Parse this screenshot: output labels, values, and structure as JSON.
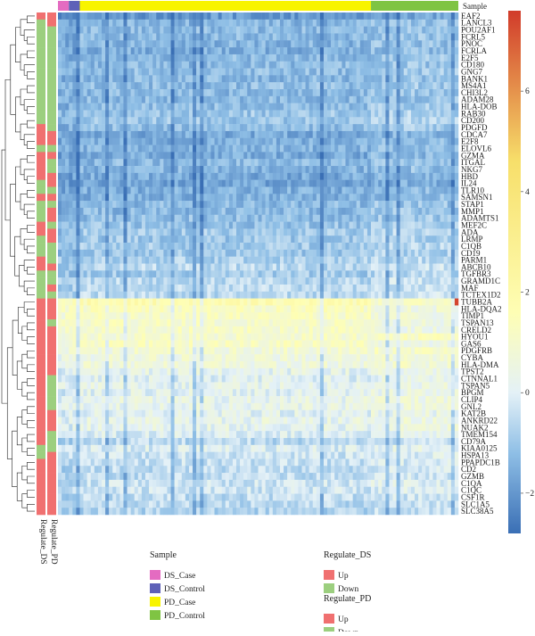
{
  "chart_data": {
    "type": "heatmap",
    "column_annotation": {
      "title": "Sample",
      "groups": [
        {
          "name": "DS_Case",
          "color": "#e46bc1",
          "count": 3
        },
        {
          "name": "DS_Control",
          "color": "#5e61b8",
          "count": 3
        },
        {
          "name": "PD_Case",
          "color": "#f8f400",
          "count": 80
        },
        {
          "name": "PD_Control",
          "color": "#7fc443",
          "count": 24
        }
      ]
    },
    "row_annotations": [
      {
        "title": "Regulate_PD",
        "levels": [
          {
            "name": "Up",
            "color": "#f07070"
          },
          {
            "name": "Down",
            "color": "#9ccf7f"
          }
        ]
      },
      {
        "title": "Regulate_DS",
        "levels": [
          {
            "name": "Up",
            "color": "#f07070"
          },
          {
            "name": "Down",
            "color": "#9ccf7f"
          }
        ]
      }
    ],
    "gene_labels": [
      "EAF2",
      "LANCL3",
      "POU2AF1",
      "FCRL5",
      "PNOC",
      "FCRLA",
      "E2F5",
      "CD180",
      "GNG7",
      "BANK1",
      "MS4A1",
      "CHI3L2",
      "ADAM28",
      "HLA-DOB",
      "RAB30",
      "CD200",
      "PDGFD",
      "CDCA7",
      "E2F8",
      "ELOVL6",
      "GZMA",
      "ITGAL",
      "NKG7",
      "HBD",
      "IL24",
      "TLR10",
      "SAMSN1",
      "STAP1",
      "MMP1",
      "ADAMTS1",
      "MEF2C",
      "ADA",
      "LRMP",
      "C1QB",
      "CD19",
      "PARM1",
      "ABCB10",
      "TGFBR3",
      "GRAMD1C",
      "MAF",
      "TCTEX1D2",
      "TUBB2A",
      "HLA-DQA2",
      "TIMP1",
      "TSPAN13",
      "CRELD2",
      "HYOU1",
      "GAS6",
      "PDGFRB",
      "CYBA",
      "HLA-DMA",
      "TPST2",
      "CTNNAL1",
      "TSPAN5",
      "BPGM",
      "CLIP4",
      "GNL2",
      "KAT2B",
      "ANKRD22",
      "NUAK2",
      "TMEM154",
      "CD79A",
      "KIAA0125",
      "HSPA13",
      "PPAPDC1B",
      "CD2",
      "GZMB",
      "C1QA",
      "C1QC",
      "CSF1R",
      "SLC1A5",
      "SLC38A5"
    ],
    "regulate_pd": [
      "Up",
      "Down",
      "Down",
      "Down",
      "Down",
      "Down",
      "Down",
      "Down",
      "Down",
      "Down",
      "Down",
      "Down",
      "Down",
      "Down",
      "Down",
      "Down",
      "Up",
      "Up",
      "Up",
      "Down",
      "Up",
      "Up",
      "Up",
      "Up",
      "Down",
      "Down",
      "Up",
      "Down",
      "Down",
      "Down",
      "Up",
      "Up",
      "Down",
      "Down",
      "Down",
      "Up",
      "Up",
      "Down",
      "Down",
      "Down",
      "Down",
      "Up",
      "Up",
      "Up",
      "Up",
      "Up",
      "Up",
      "Up",
      "Up",
      "Up",
      "Up",
      "Up",
      "Up",
      "Up",
      "Up",
      "Up",
      "Up",
      "Up",
      "Up",
      "Up",
      "Up",
      "Up",
      "Down",
      "Down",
      "Up",
      "Up",
      "Up",
      "Up",
      "Up",
      "Up",
      "Up",
      "Up"
    ],
    "regulate_ds": [
      "Up",
      "Up",
      "Down",
      "Down",
      "Down",
      "Down",
      "Down",
      "Down",
      "Down",
      "Down",
      "Down",
      "Down",
      "Down",
      "Down",
      "Down",
      "Down",
      "Down",
      "Up",
      "Up",
      "Down",
      "Up",
      "Down",
      "Down",
      "Up",
      "Up",
      "Down",
      "Up",
      "Down",
      "Up",
      "Up",
      "Down",
      "Up",
      "Up",
      "Down",
      "Down",
      "Down",
      "Up",
      "Down",
      "Down",
      "Up",
      "Down",
      "Up",
      "Up",
      "Up",
      "Down",
      "Up",
      "Up",
      "Up",
      "Up",
      "Up",
      "Up",
      "Up",
      "Down",
      "Down",
      "Down",
      "Down",
      "Down",
      "Up",
      "Up",
      "Up",
      "Down",
      "Down",
      "Down",
      "Up",
      "Up",
      "Up",
      "Up",
      "Up",
      "Up",
      "Up",
      "Up",
      "Up"
    ],
    "color_scale": {
      "ticks": [
        -2,
        0,
        2,
        4,
        6
      ],
      "min": -2.8,
      "max": 7.6,
      "stops": [
        {
          "value": -2.8,
          "color": "#3a6fb5"
        },
        {
          "value": -1.2,
          "color": "#8fbfe6"
        },
        {
          "value": 0,
          "color": "#e4f1f7"
        },
        {
          "value": 1.6,
          "color": "#fefeb4"
        },
        {
          "value": 4.6,
          "color": "#f7df6a"
        },
        {
          "value": 7.6,
          "color": "#d13b2a"
        }
      ]
    },
    "row_base_values": [
      -1.9,
      -1.4,
      -1.3,
      -1.3,
      -1.4,
      -1.5,
      -1.3,
      -1.3,
      -1.2,
      -1.3,
      -1.2,
      -1.3,
      -1.3,
      -1.2,
      -1.0,
      -1.0,
      -1.2,
      -1.6,
      -1.5,
      -1.4,
      -1.6,
      -1.3,
      -1.4,
      -1.6,
      -1.7,
      -1.5,
      -1.5,
      -1.3,
      -1.3,
      -1.2,
      -1.1,
      -0.9,
      -1.0,
      -0.9,
      -1.0,
      -0.8,
      -0.6,
      -0.9,
      -0.6,
      -0.6,
      -0.6,
      1.7,
      1.3,
      1.2,
      1.1,
      1.1,
      1.0,
      1.2,
      0.8,
      0.6,
      0.6,
      0.2,
      0.0,
      0.2,
      0.1,
      0.3,
      0.3,
      0.1,
      0.3,
      0.2,
      -0.1,
      -0.6,
      -0.1,
      -0.3,
      -0.4,
      -0.5,
      -0.5,
      -0.3,
      -0.3,
      -0.5,
      -0.6,
      -0.7
    ],
    "legend_titles": {
      "sample": "Sample",
      "regulate_ds": "Regulate_DS",
      "regulate_pd": "Regulate_PD"
    },
    "axis_labels": {
      "row_annotation_1": "Regulate_PD",
      "row_annotation_2": "Regulate_DS"
    }
  }
}
